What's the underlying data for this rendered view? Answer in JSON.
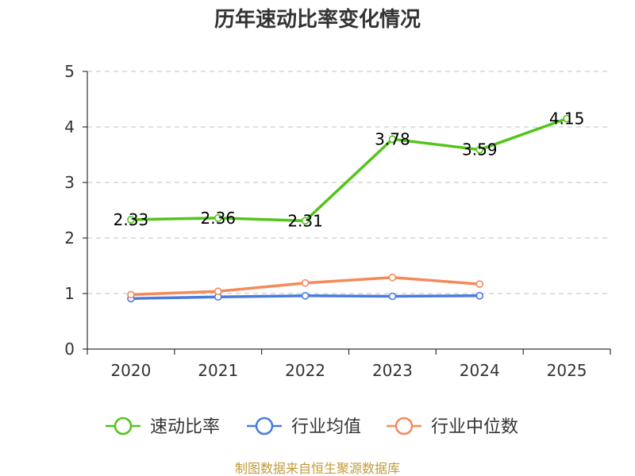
{
  "chart_data": {
    "type": "line",
    "title": "历年速动比率变化情况",
    "categories": [
      "2020",
      "2021",
      "2022",
      "2023",
      "2024",
      "2025"
    ],
    "ylim": [
      0,
      5
    ],
    "yticks": [
      "0",
      "1",
      "2",
      "3",
      "4",
      "5"
    ],
    "grid": true,
    "legend_position": "bottom",
    "series": [
      {
        "name": "速动比率",
        "color": "#52c41a",
        "values": [
          2.33,
          2.36,
          2.31,
          3.78,
          3.59,
          4.15
        ],
        "labels": [
          "2.33",
          "2.36",
          "2.31",
          "3.78",
          "3.59",
          "4.15"
        ]
      },
      {
        "name": "行业均值",
        "color": "#4a7bdc",
        "values": [
          0.91,
          0.94,
          0.96,
          0.95,
          0.96,
          null
        ]
      },
      {
        "name": "行业中位数",
        "color": "#f5895a",
        "values": [
          0.98,
          1.04,
          1.19,
          1.29,
          1.17,
          null
        ]
      }
    ],
    "source": "制图数据来自恒生聚源数据库",
    "source_color": "#c29a3a"
  }
}
